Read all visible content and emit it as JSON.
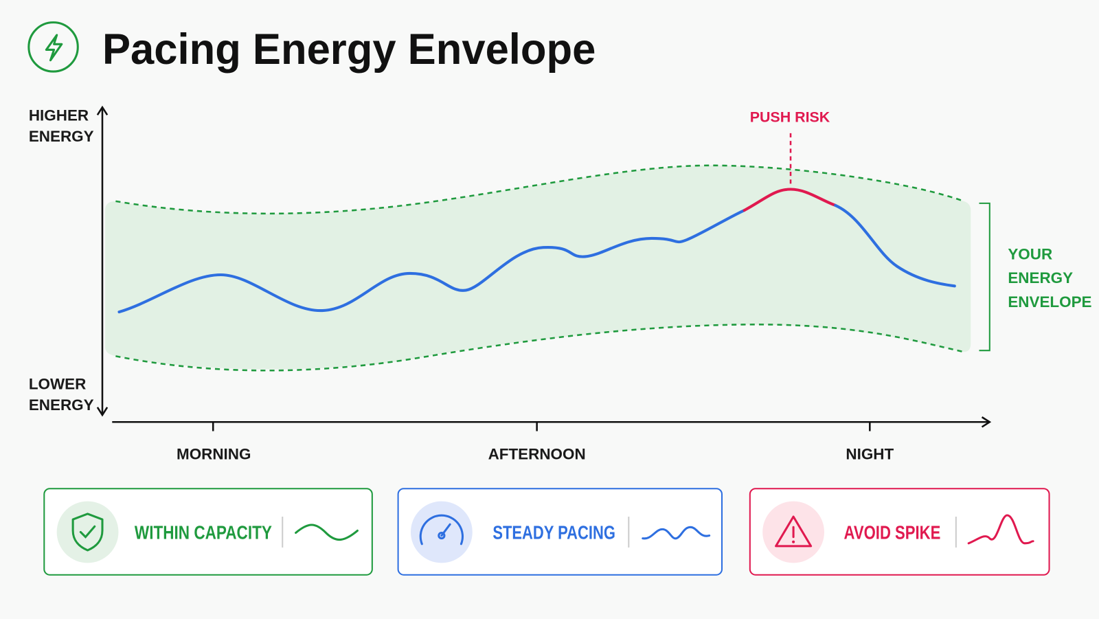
{
  "header": {
    "title": "Pacing Energy Envelope"
  },
  "axes": {
    "y_high": [
      "HIGHER",
      "ENERGY"
    ],
    "y_low": [
      "LOWER",
      "ENERGY"
    ],
    "x_labels": [
      "MORNING",
      "AFTERNOON",
      "NIGHT"
    ]
  },
  "annotations": {
    "push_risk": "PUSH RISK",
    "envelope": [
      "YOUR",
      "ENERGY",
      "ENVELOPE"
    ]
  },
  "legend": [
    {
      "label": "WITHIN CAPACITY"
    },
    {
      "label": "STEADY PACING"
    },
    {
      "label": "AVOID SPIKE"
    }
  ]
}
